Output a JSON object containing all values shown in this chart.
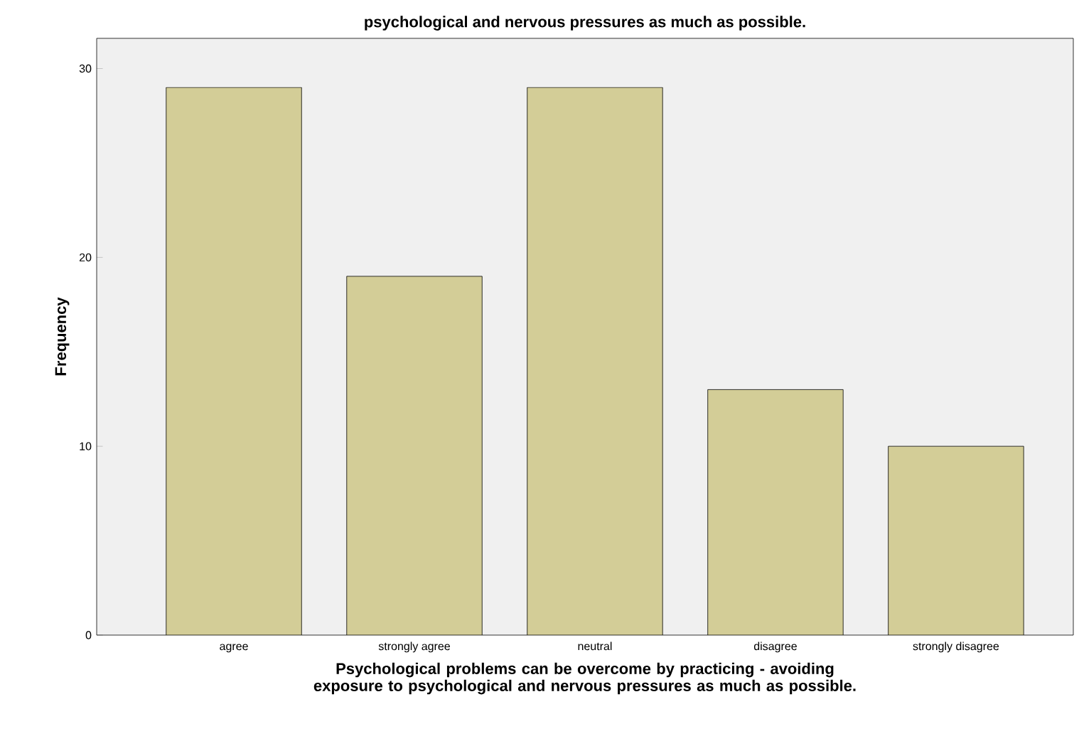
{
  "chart_data": {
    "type": "bar",
    "title": "psychological and nervous pressures as much as possible.",
    "xlabel": "Psychological problems can be overcome by practicing - avoiding exposure to psychological and nervous pressures as much as possible.",
    "ylabel": "Frequency",
    "categories": [
      "agree",
      "strongly agree",
      "neutral",
      "disagree",
      "strongly disagree"
    ],
    "values": [
      29,
      19,
      29,
      13,
      10
    ],
    "color": "#d3cd97",
    "ylim": [
      0,
      31.6
    ],
    "yticks": [
      0,
      10,
      20,
      30
    ]
  }
}
